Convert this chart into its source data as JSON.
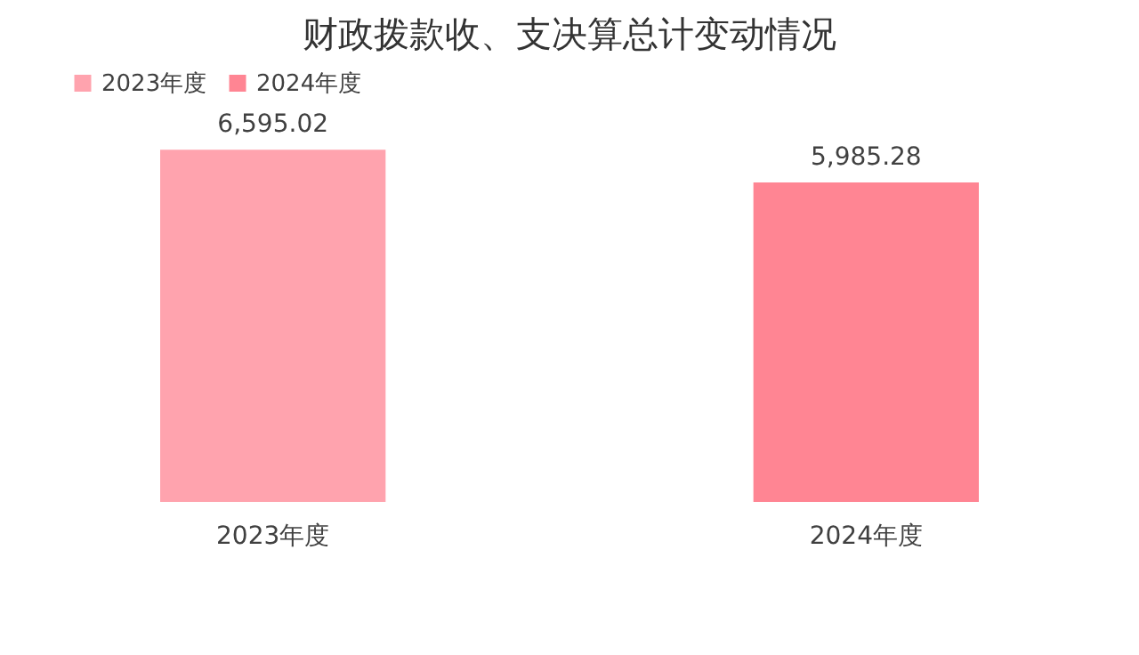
{
  "chart_data": {
    "type": "bar",
    "title": "财政拨款收、支决算总计变动情况",
    "categories": [
      "2023年度",
      "2024年度"
    ],
    "series": [
      {
        "name": "2023年度",
        "color": "#ffa3ae",
        "values": [
          6595.02,
          null
        ],
        "value_labels": [
          "6,595.02",
          null
        ]
      },
      {
        "name": "2024年度",
        "color": "#ff8593",
        "values": [
          null,
          5985.28
        ],
        "value_labels": [
          null,
          "5,985.28"
        ]
      }
    ],
    "legend": "top"
  }
}
